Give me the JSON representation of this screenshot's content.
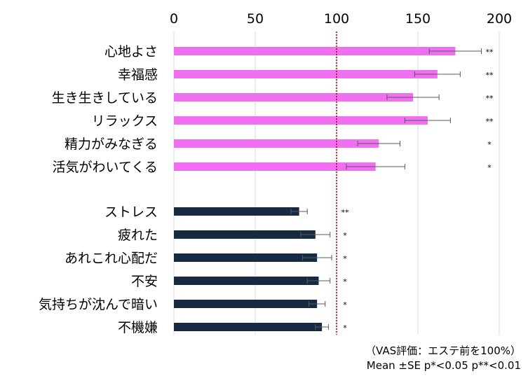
{
  "chart_data": {
    "type": "bar",
    "orientation": "horizontal",
    "title": "",
    "xlabel": "",
    "ylabel": "",
    "xlim": [
      0,
      200
    ],
    "xticks": [
      "0",
      "50",
      "100",
      "150",
      "200"
    ],
    "x_axis_position": "top",
    "grid": true,
    "reference_line": 100,
    "reference_line_style": "dotted",
    "reference_line_color": "#c00000",
    "series": [
      {
        "group": "positive",
        "color": "#f06ef0",
        "categories": [
          "心地よさ",
          "幸福感",
          "生き生きしている",
          "リラックス",
          "精力がみなぎる",
          "活気がわいてくる"
        ],
        "values": [
          173,
          162,
          147,
          156,
          126,
          124
        ],
        "errors": [
          16,
          14,
          16,
          14,
          13,
          18
        ],
        "significance": [
          "**",
          "**",
          "**",
          "**",
          "*",
          "*"
        ]
      },
      {
        "group": "negative",
        "color": "#172a41",
        "categories": [
          "ストレス",
          "疲れた",
          "あれこれ心配だ",
          "不安",
          "気持ちが沈んで暗い",
          "不機嫌"
        ],
        "values": [
          77,
          87,
          88,
          89,
          88,
          91
        ],
        "errors": [
          5,
          9,
          9,
          7,
          5,
          4
        ],
        "significance": [
          "**",
          "*",
          "*",
          "*",
          "*",
          "*"
        ]
      }
    ],
    "notes": [
      "（VAS評価：エステ前を100%）",
      "Mean ±SE p*<0.05  p**<0.01"
    ]
  }
}
